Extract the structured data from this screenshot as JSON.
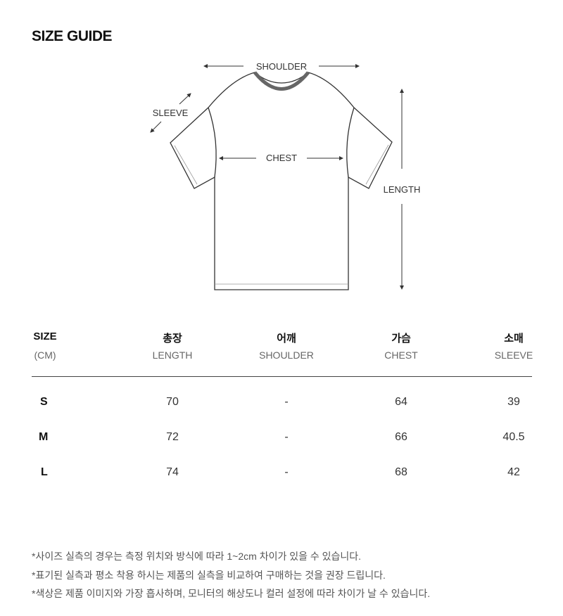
{
  "title": "SIZE GUIDE",
  "diagram": {
    "shoulder": "SHOULDER",
    "sleeve": "SLEEVE",
    "chest": "CHEST",
    "length": "LENGTH"
  },
  "table": {
    "headers": [
      {
        "ko": "SIZE",
        "en": "(CM)"
      },
      {
        "ko": "총장",
        "en": "LENGTH"
      },
      {
        "ko": "어깨",
        "en": "SHOULDER"
      },
      {
        "ko": "가슴",
        "en": "CHEST"
      },
      {
        "ko": "소매",
        "en": "SLEEVE"
      }
    ],
    "rows": [
      [
        "S",
        "70",
        "-",
        "64",
        "39"
      ],
      [
        "M",
        "72",
        "-",
        "66",
        "40.5"
      ],
      [
        "L",
        "74",
        "-",
        "68",
        "42"
      ]
    ]
  },
  "notes": [
    "*사이즈 실측의 경우는 측정 위치와 방식에 따라 1~2cm 차이가 있을 수 있습니다.",
    "*표기된 실측과 평소 착용 하시는 제품의 실측을 비교하여 구매하는 것을 권장 드립니다.",
    "*색상은 제품 이미지와 가장 흡사하며, 모니터의 해상도나 컬러 설정에 따라 차이가 날 수 있습니다."
  ]
}
